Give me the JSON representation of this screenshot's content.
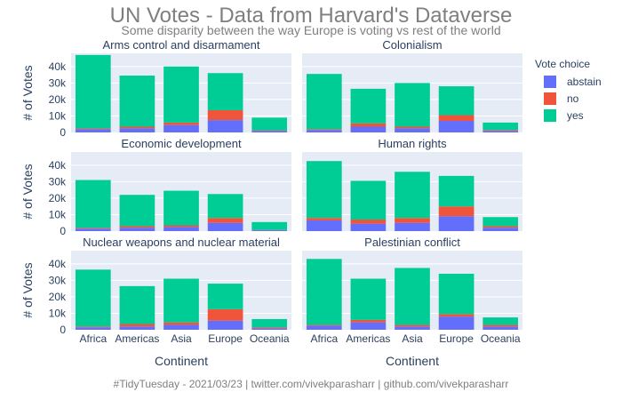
{
  "title": "UN Votes - Data from Harvard's Dataverse",
  "subtitle": "Some disparity between the way Europe is voting vs rest of the world",
  "footer": "#TidyTuesday - 2021/03/23 | twitter.com/vivekparasharr | github.com/vivekparasharr",
  "colors": {
    "abstain": "#636efa",
    "no": "#ef553b",
    "yes": "#00cc96",
    "panel_bg": "#e5ecf6",
    "text": "#2a3f5f"
  },
  "chart_data": {
    "type": "bar",
    "barmode": "stack",
    "categories": [
      "Africa",
      "Americas",
      "Asia",
      "Europe",
      "Oceania"
    ],
    "xlabel": "Continent",
    "ylabel": "# of Votes",
    "ylim": [
      0,
      48000
    ],
    "yticks": [
      0,
      10000,
      20000,
      30000,
      40000
    ],
    "ytick_labels": [
      "0",
      "10k",
      "20k",
      "30k",
      "40k"
    ],
    "grid": true,
    "legend": {
      "title": "Vote choice",
      "position": "right",
      "entries": [
        "abstain",
        "no",
        "yes"
      ]
    },
    "panels": [
      {
        "title": "Arms control and disarmament",
        "series": [
          {
            "name": "abstain",
            "values": [
              2000,
              2500,
              4500,
              7500,
              1000
            ]
          },
          {
            "name": "no",
            "values": [
              500,
              1000,
              1500,
              6000,
              300
            ]
          },
          {
            "name": "yes",
            "values": [
              44500,
              31000,
              34000,
              22500,
              7700
            ]
          }
        ]
      },
      {
        "title": "Colonialism",
        "series": [
          {
            "name": "abstain",
            "values": [
              1500,
              3500,
              2500,
              7000,
              1000
            ]
          },
          {
            "name": "no",
            "values": [
              500,
              2000,
              1000,
              3500,
              500
            ]
          },
          {
            "name": "yes",
            "values": [
              33500,
              21000,
              26500,
              17500,
              4500
            ]
          }
        ]
      },
      {
        "title": "Economic development",
        "series": [
          {
            "name": "abstain",
            "values": [
              1500,
              2000,
              2500,
              5000,
              500
            ]
          },
          {
            "name": "no",
            "values": [
              500,
              1000,
              1000,
              3000,
              200
            ]
          },
          {
            "name": "yes",
            "values": [
              29000,
              19000,
              21000,
              14500,
              4800
            ]
          }
        ]
      },
      {
        "title": "Human rights",
        "series": [
          {
            "name": "abstain",
            "values": [
              6500,
              4500,
              5000,
              9000,
              2000
            ]
          },
          {
            "name": "no",
            "values": [
              1500,
              2500,
              3000,
              6000,
              1000
            ]
          },
          {
            "name": "yes",
            "values": [
              34500,
              23500,
              28000,
              18500,
              5500
            ]
          }
        ]
      },
      {
        "title": "Nuclear weapons and nuclear material",
        "series": [
          {
            "name": "abstain",
            "values": [
              1500,
              2000,
              3000,
              5500,
              1000
            ]
          },
          {
            "name": "no",
            "values": [
              500,
              1500,
              1500,
              7000,
              500
            ]
          },
          {
            "name": "yes",
            "values": [
              34500,
              23000,
              26500,
              15500,
              5000
            ]
          }
        ]
      },
      {
        "title": "Palestinian conflict",
        "series": [
          {
            "name": "abstain",
            "values": [
              2500,
              4500,
              2000,
              8000,
              2000
            ]
          },
          {
            "name": "no",
            "values": [
              500,
              1500,
              1000,
              1500,
              1000
            ]
          },
          {
            "name": "yes",
            "values": [
              40000,
              25000,
              34500,
              24500,
              4500
            ]
          }
        ]
      }
    ]
  }
}
